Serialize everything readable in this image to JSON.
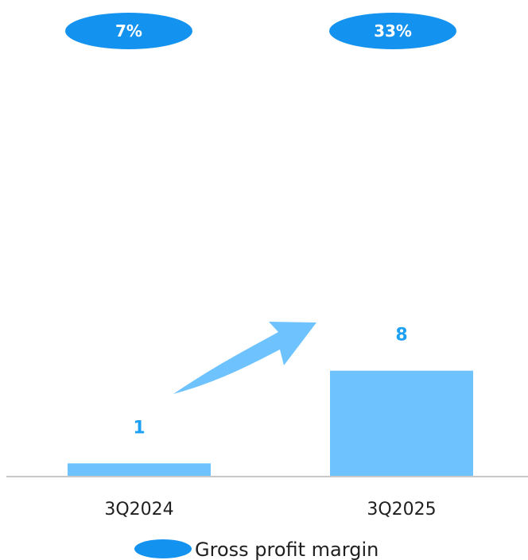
{
  "chart_data": {
    "type": "bar",
    "categories": [
      "3Q2024",
      "3Q2025"
    ],
    "values": [
      1,
      8
    ],
    "value_labels": [
      "1",
      "8"
    ],
    "margin_labels": [
      "7%",
      "33%"
    ],
    "legend": {
      "label": "Gross profit margin"
    },
    "grid": false,
    "ylim": [
      0,
      30
    ],
    "colors": {
      "bar": "#6ec3ff",
      "value_label": "#1ea0f4",
      "margin_ellipse": "#1492f0",
      "arrow": "#6ec3ff",
      "baseline": "#c8c8c8",
      "text": "#1f1f1f"
    }
  }
}
